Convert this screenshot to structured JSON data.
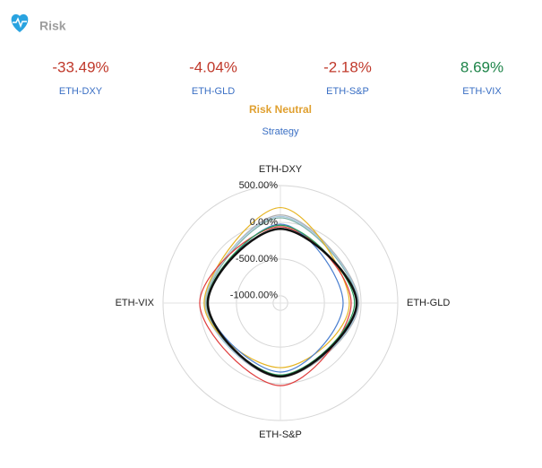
{
  "header": {
    "title": "Risk"
  },
  "stats": [
    {
      "value": "-33.49%",
      "label": "ETH-DXY",
      "color": "#c0392b"
    },
    {
      "value": "-4.04%",
      "label": "ETH-GLD",
      "color": "#c0392b"
    },
    {
      "value": "-2.18%",
      "label": "ETH-S&P",
      "color": "#c0392b"
    },
    {
      "value": "8.69%",
      "label": "ETH-VIX",
      "color": "#1e8449"
    }
  ],
  "strategy": {
    "title": "Risk Neutral",
    "subtitle": "Strategy"
  },
  "chart_data": {
    "type": "radar",
    "categories": [
      "ETH-DXY",
      "ETH-GLD",
      "ETH-S&P",
      "ETH-VIX"
    ],
    "rlim": [
      -1100,
      500
    ],
    "rticks": [
      {
        "value": 500,
        "label": "500.00%"
      },
      {
        "value": 0,
        "label": "0.00%"
      },
      {
        "value": -500,
        "label": "-500.00%"
      },
      {
        "value": -1000,
        "label": "-1000.00%"
      }
    ],
    "grid": true,
    "series": [
      {
        "color": "#b0b0b0",
        "values": [
          100,
          -30,
          -90,
          -80
        ]
      },
      {
        "color": "#7fb3a8",
        "values": [
          60,
          -50,
          -110,
          -95
        ]
      },
      {
        "color": "#a9c8e0",
        "values": [
          80,
          -40,
          -100,
          -70
        ]
      },
      {
        "color": "#e6b422",
        "values": [
          200,
          -160,
          -220,
          -60
        ]
      },
      {
        "color": "#e03c3c",
        "values": [
          -60,
          -135,
          25,
          0
        ]
      },
      {
        "color": "#4a7fd0",
        "values": [
          -25,
          -245,
          -160,
          -110
        ]
      },
      {
        "color": "#2e9e5b",
        "values": [
          -40,
          -90,
          -120,
          -100
        ]
      },
      {
        "color": "#111111",
        "values": [
          -90,
          -60,
          -100,
          -110
        ]
      }
    ]
  }
}
